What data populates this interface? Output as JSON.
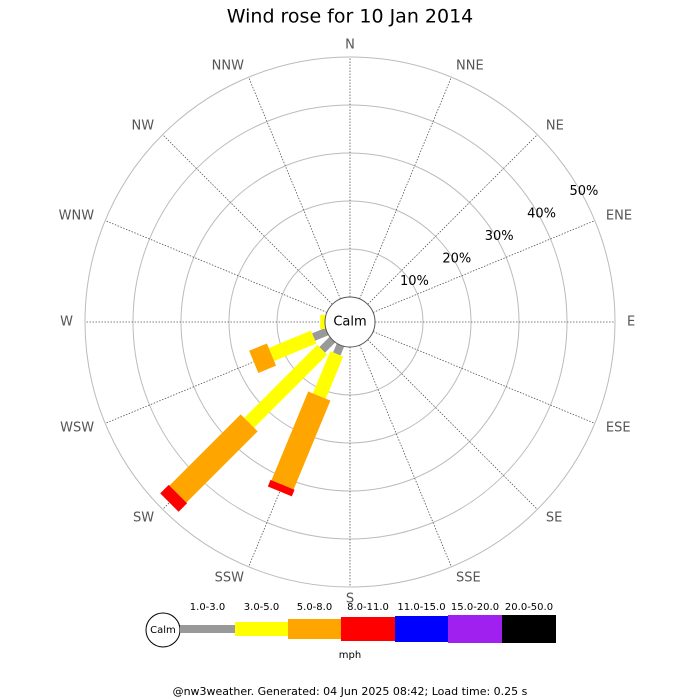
{
  "chart_data": {
    "type": "windrose",
    "title": "Wind rose for 10 Jan 2014",
    "categories": [
      "N",
      "NNE",
      "NE",
      "ENE",
      "E",
      "ESE",
      "SE",
      "SSE",
      "S",
      "SSW",
      "SW",
      "WSW",
      "W",
      "WNW",
      "NW",
      "NNW"
    ],
    "series": [
      {
        "name": "1.0-3.0",
        "color": "#999999",
        "values": [
          0,
          0,
          0,
          0,
          0,
          0,
          0,
          0,
          0,
          2,
          3,
          3,
          0,
          0,
          0,
          0
        ]
      },
      {
        "name": "3.0-5.0",
        "color": "#ffff00",
        "values": [
          0,
          0,
          0,
          0,
          0,
          0,
          0,
          0,
          0,
          9.5,
          21.5,
          9.5,
          1,
          0,
          0,
          0
        ]
      },
      {
        "name": "5.0-8.0",
        "color": "#ffa500",
        "values": [
          0,
          0,
          0,
          0,
          0,
          0,
          0,
          0,
          0,
          20,
          21,
          4,
          0,
          0,
          0,
          0
        ]
      },
      {
        "name": "8.0-11.0",
        "color": "#ff0000",
        "values": [
          0,
          0,
          0,
          0,
          0,
          0,
          0,
          0,
          0,
          1.5,
          2.5,
          0,
          0,
          0,
          0,
          0
        ]
      },
      {
        "name": "11.0-15.0",
        "color": "#0000ff",
        "values": [
          0,
          0,
          0,
          0,
          0,
          0,
          0,
          0,
          0,
          0,
          0,
          0,
          0,
          0,
          0,
          0
        ]
      },
      {
        "name": "15.0-20.0",
        "color": "#a020f0",
        "values": [
          0,
          0,
          0,
          0,
          0,
          0,
          0,
          0,
          0,
          0,
          0,
          0,
          0,
          0,
          0,
          0
        ]
      },
      {
        "name": "20.0-50.0",
        "color": "#000000",
        "values": [
          0,
          0,
          0,
          0,
          0,
          0,
          0,
          0,
          0,
          0,
          0,
          0,
          0,
          0,
          0,
          0
        ]
      }
    ],
    "rlim": [
      0,
      50
    ],
    "rticks": [
      {
        "value": 10,
        "label": "10%"
      },
      {
        "value": 20,
        "label": "20%"
      },
      {
        "value": 30,
        "label": "30%"
      },
      {
        "value": 40,
        "label": "40%"
      },
      {
        "value": 50,
        "label": "50%"
      }
    ],
    "calm_label": "Calm",
    "unit": "mph",
    "footer": "@nw3weather. Generated: 04 Jun 2025 08:42; Load time: 0.25 s"
  }
}
